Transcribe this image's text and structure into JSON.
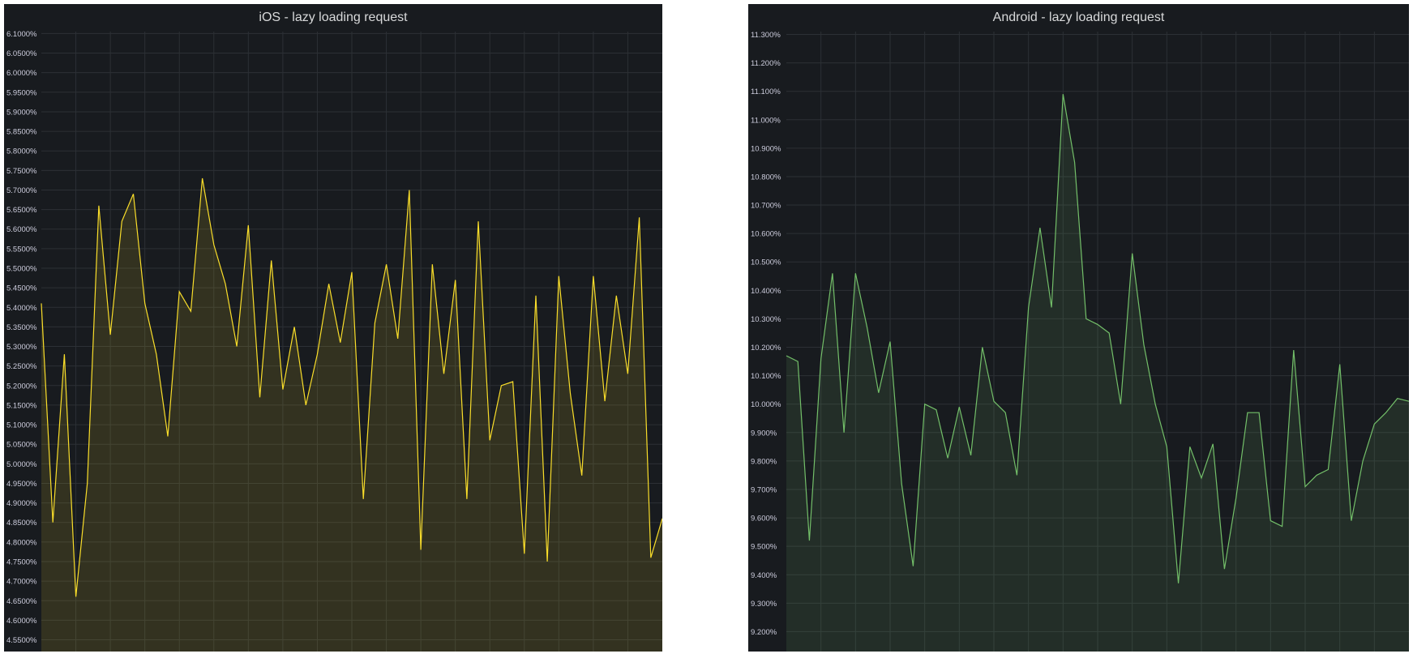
{
  "chart_data": [
    {
      "type": "area",
      "title": "iOS - lazy loading request",
      "ylim": [
        4.52,
        6.105
      ],
      "y_ticks": [
        "6.1000%",
        "6.0500%",
        "6.0000%",
        "5.9500%",
        "5.9000%",
        "5.8500%",
        "5.8000%",
        "5.7500%",
        "5.7000%",
        "5.6500%",
        "5.6000%",
        "5.5500%",
        "5.5000%",
        "5.4500%",
        "5.4000%",
        "5.3500%",
        "5.3000%",
        "5.2500%",
        "5.2000%",
        "5.1500%",
        "5.1000%",
        "5.0500%",
        "5.0000%",
        "4.9500%",
        "4.9000%",
        "4.8500%",
        "4.8000%",
        "4.7500%",
        "4.7000%",
        "4.6500%",
        "4.6000%",
        "4.5500%"
      ],
      "grid": true,
      "color": "#fade2a",
      "series": [
        {
          "values": [
            5.41,
            4.85,
            5.28,
            4.66,
            4.95,
            5.66,
            5.33,
            5.62,
            5.69,
            5.41,
            5.28,
            5.07,
            5.44,
            5.39,
            5.73,
            5.56,
            5.46,
            5.3,
            5.61,
            5.17,
            5.52,
            5.19,
            5.35,
            5.15,
            5.28,
            5.46,
            5.31,
            5.49,
            4.91,
            5.36,
            5.51,
            5.32,
            5.7,
            4.78,
            5.51,
            5.23,
            5.47,
            4.91,
            5.62,
            5.06,
            5.2,
            5.21,
            4.77,
            5.43,
            4.75,
            5.48,
            5.18,
            4.97,
            5.48,
            5.16,
            5.43,
            5.23,
            5.63,
            4.76,
            4.86
          ]
        }
      ]
    },
    {
      "type": "area",
      "title": "Android - lazy loading request",
      "ylim": [
        9.13,
        11.31
      ],
      "y_ticks": [
        "11.300%",
        "11.200%",
        "11.100%",
        "11.000%",
        "10.900%",
        "10.800%",
        "10.700%",
        "10.600%",
        "10.500%",
        "10.400%",
        "10.300%",
        "10.200%",
        "10.100%",
        "10.000%",
        "9.900%",
        "9.800%",
        "9.700%",
        "9.600%",
        "9.500%",
        "9.400%",
        "9.300%",
        "9.200%"
      ],
      "grid": true,
      "color": "#73bf69",
      "series": [
        {
          "values": [
            10.17,
            10.15,
            9.52,
            10.16,
            10.46,
            9.9,
            10.46,
            10.27,
            10.04,
            10.22,
            9.72,
            9.43,
            10.0,
            9.98,
            9.81,
            9.99,
            9.82,
            10.2,
            10.01,
            9.97,
            9.75,
            10.34,
            10.62,
            10.34,
            11.09,
            10.85,
            10.3,
            10.28,
            10.25,
            10.0,
            10.53,
            10.21,
            10.0,
            9.85,
            9.37,
            9.85,
            9.74,
            9.86,
            9.42,
            9.67,
            9.97,
            9.97,
            9.59,
            9.57,
            10.19,
            9.71,
            9.75,
            9.77,
            10.14,
            9.59,
            9.8,
            9.93,
            9.97,
            10.02,
            10.01
          ]
        }
      ]
    }
  ]
}
